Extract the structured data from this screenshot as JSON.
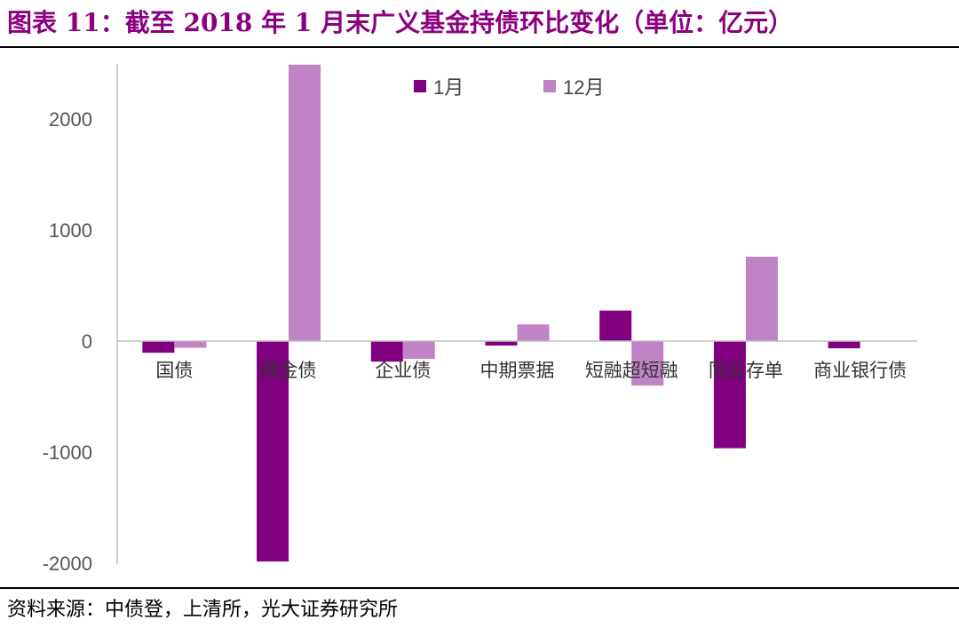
{
  "title": "图表 11：截至 2018 年 1 月末广义基金持债环比变化（单位：亿元）",
  "source": "资料来源：中债登，上清所，光大证券研究所",
  "colors": {
    "jan": "#800080",
    "dec": "#c083c5",
    "axis": "#bfbfbf"
  },
  "chart_data": {
    "type": "bar",
    "title": "截至 2018 年 1 月末广义基金持债环比变化（单位：亿元）",
    "categories": [
      "国债",
      "政金债",
      "企业债",
      "中期票据",
      "短融超短融",
      "同业存单",
      "商业银行债"
    ],
    "series": [
      {
        "name": "1月",
        "values": [
          -105,
          -1985,
          -185,
          -40,
          275,
          -965,
          -65
        ]
      },
      {
        "name": "12月",
        "values": [
          -60,
          2490,
          -160,
          150,
          -400,
          760,
          0
        ]
      }
    ],
    "yticks": [
      2000,
      1000,
      0,
      -1000,
      -2000
    ],
    "ylim": [
      -2000,
      2500
    ],
    "grid": false,
    "legend": "top"
  }
}
